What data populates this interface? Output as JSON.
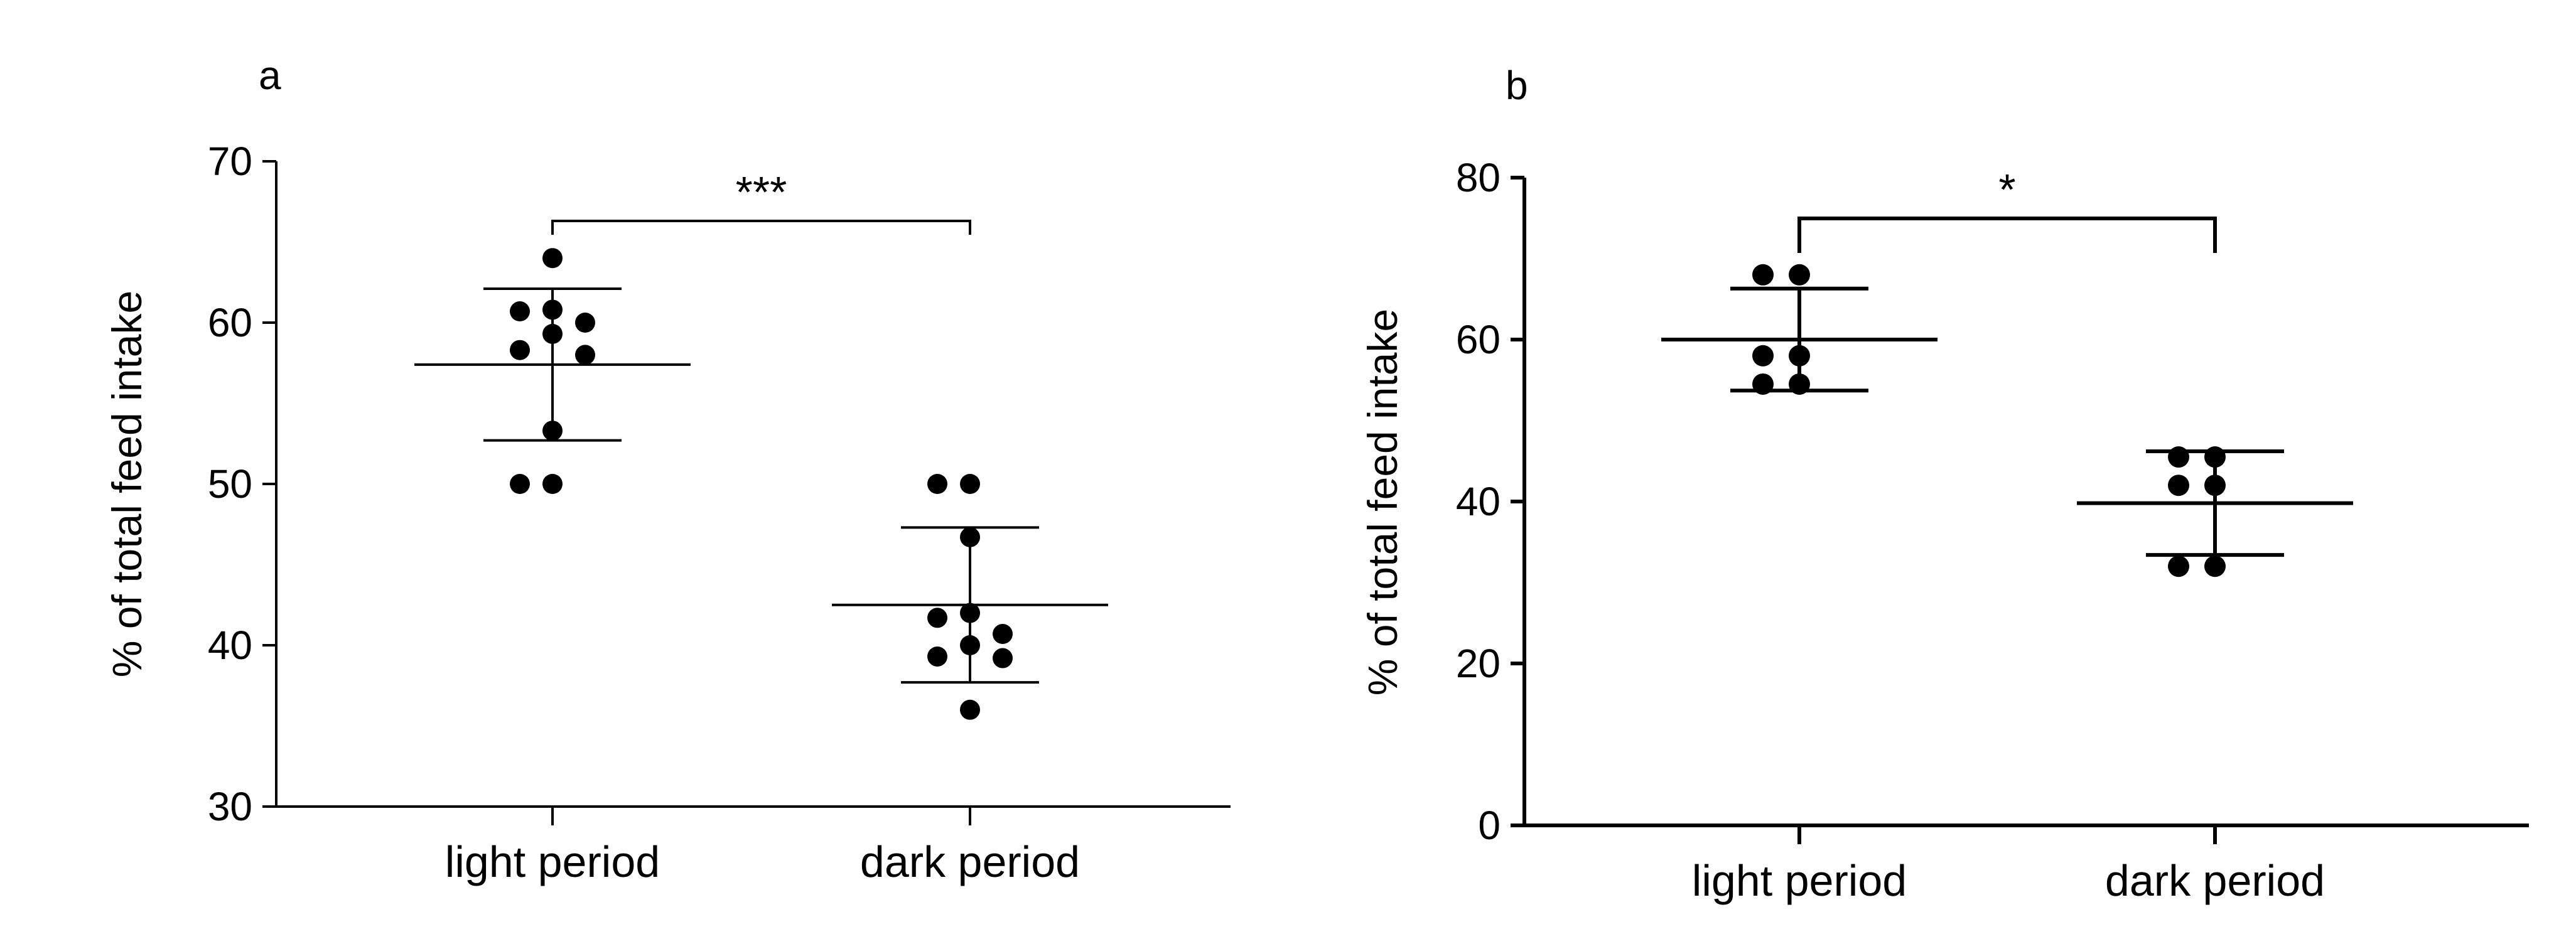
{
  "chart_data": [
    {
      "type": "scatter",
      "panel_label": "a",
      "ylabel": "% of total feed intake",
      "xlabel": "",
      "ylim": [
        30,
        70
      ],
      "yticks": [
        30,
        40,
        50,
        60,
        70
      ],
      "categories": [
        "light period",
        "dark period"
      ],
      "points": [
        [
          64,
          60.8,
          60.7,
          60.0,
          59.3,
          58.3,
          58.0,
          53.3,
          50.0,
          50.0
        ],
        [
          50.0,
          50.0,
          46.7,
          42.0,
          41.7,
          40.7,
          40.0,
          39.3,
          39.2,
          36.0
        ]
      ],
      "mean": [
        57.4,
        42.5
      ],
      "sd": [
        4.7,
        4.8
      ],
      "significance": "***",
      "grid": false,
      "marker_color": "#000000"
    },
    {
      "type": "scatter",
      "panel_label": "b",
      "ylabel": "% of total feed intake",
      "xlabel": "",
      "ylim": [
        0,
        80
      ],
      "yticks": [
        0,
        20,
        40,
        60,
        80
      ],
      "categories": [
        "light period",
        "dark period"
      ],
      "points": [
        [
          68,
          68,
          58,
          58,
          54.5,
          54.5
        ],
        [
          45.5,
          45.5,
          42,
          42,
          32,
          32
        ]
      ],
      "mean": [
        60,
        39.8
      ],
      "sd": [
        6.3,
        6.4
      ],
      "significance": "*",
      "grid": false,
      "marker_color": "#000000"
    }
  ]
}
